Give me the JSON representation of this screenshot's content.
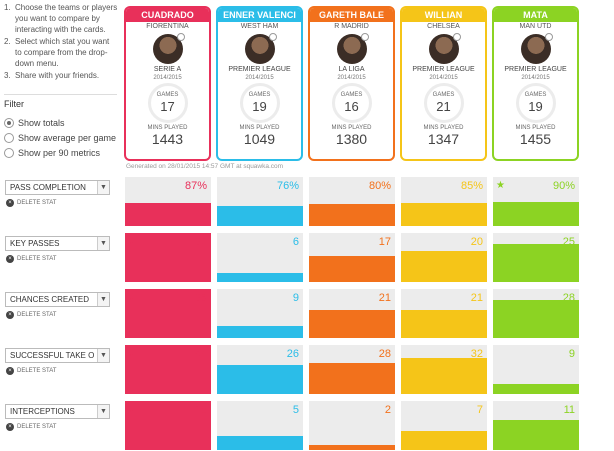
{
  "instructions": [
    {
      "num": "1.",
      "text": "Choose the teams or players you want to compare by interacting with the cards."
    },
    {
      "num": "2.",
      "text": "Select which stat you want to compare from the drop-down menu."
    },
    {
      "num": "3.",
      "text": "Share with your friends."
    }
  ],
  "filter": {
    "title": "Filter",
    "options": [
      {
        "label": "Show totals",
        "selected": true
      },
      {
        "label": "Show average per game",
        "selected": false
      },
      {
        "label": "Show per 90 metrics",
        "selected": false
      }
    ]
  },
  "players": [
    {
      "name": "CUADRADO",
      "team": "FIORENTINA",
      "league": "SERIE A",
      "season": "2014/2015",
      "games_label": "GAMES",
      "games": "17",
      "mins_label": "MINS PLAYED",
      "mins": "1443",
      "color": "#e8305a"
    },
    {
      "name": "ENNER VALENCI",
      "team": "WEST HAM",
      "league": "PREMIER LEAGUE",
      "season": "2014/2015",
      "games_label": "GAMES",
      "games": "19",
      "mins_label": "MINS PLAYED",
      "mins": "1049",
      "color": "#2bbde8"
    },
    {
      "name": "GARETH BALE",
      "team": "R MADRID",
      "league": "LA LIGA",
      "season": "2014/2015",
      "games_label": "GAMES",
      "games": "16",
      "mins_label": "MINS PLAYED",
      "mins": "1380",
      "color": "#f2711c"
    },
    {
      "name": "WILLIAN",
      "team": "CHELSEA",
      "league": "PREMIER LEAGUE",
      "season": "2014/2015",
      "games_label": "GAMES",
      "games": "21",
      "mins_label": "MINS PLAYED",
      "mins": "1347",
      "color": "#f5c518"
    },
    {
      "name": "MATA",
      "team": "MAN UTD",
      "league": "PREMIER LEAGUE",
      "season": "2014/2015",
      "games_label": "GAMES",
      "games": "19",
      "mins_label": "MINS PLAYED",
      "mins": "1455",
      "color": "#8cd323"
    }
  ],
  "generated": "Generated on 28/01/2015 14:57 GMT at squawka.com",
  "delete_label": "DELETE STAT",
  "stats": [
    {
      "name": "PASS COMPLETION",
      "values": [
        "87%",
        "76%",
        "80%",
        "85%",
        "90%"
      ],
      "fractions": [
        0.87,
        0.76,
        0.8,
        0.85,
        0.9
      ],
      "leader": 4
    },
    {
      "name": "KEY PASSES",
      "values": [
        "32",
        "6",
        "17",
        "20",
        "25"
      ],
      "fractions": [
        1.0,
        0.19,
        0.53,
        0.63,
        0.78
      ],
      "leader": 0
    },
    {
      "name": "CHANCES CREATED",
      "values": [
        "36",
        "9",
        "21",
        "21",
        "28"
      ],
      "fractions": [
        1.0,
        0.25,
        0.58,
        0.58,
        0.78
      ],
      "leader": 0
    },
    {
      "name": "SUCCESSFUL TAKE O",
      "values": [
        "44",
        "26",
        "28",
        "32",
        "9"
      ],
      "fractions": [
        1.0,
        0.59,
        0.64,
        0.73,
        0.2
      ],
      "leader": 0
    },
    {
      "name": "INTERCEPTIONS",
      "values": [
        "18",
        "5",
        "2",
        "7",
        "11"
      ],
      "fractions": [
        1.0,
        0.28,
        0.11,
        0.39,
        0.61
      ],
      "leader": 0
    }
  ]
}
